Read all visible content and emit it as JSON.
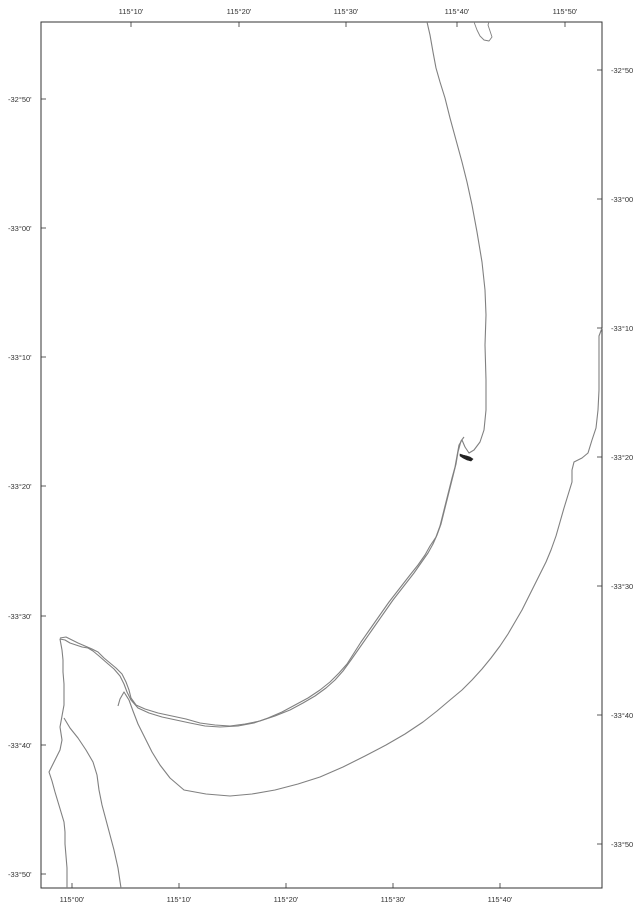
{
  "map": {
    "line_color": "#808080",
    "frame_color": "#333333",
    "island_color": "#222222",
    "top_longitude_labels": [
      "115°10'",
      "115°20'",
      "115°30'",
      "115°40'",
      "115°50'"
    ],
    "bottom_longitude_labels": [
      "115°00'",
      "115°10'",
      "115°20'",
      "115°30'",
      "115°40'"
    ],
    "left_latitude_labels": [
      "-32°50'",
      "-33°00'",
      "-33°10'",
      "-33°20'",
      "-33°30'",
      "-33°40'",
      "-33°50'"
    ],
    "right_latitude_labels": [
      "-32°50",
      "-33°00",
      "-33°10",
      "-33°20",
      "-33°30",
      "-33°40",
      "-33°50"
    ]
  }
}
